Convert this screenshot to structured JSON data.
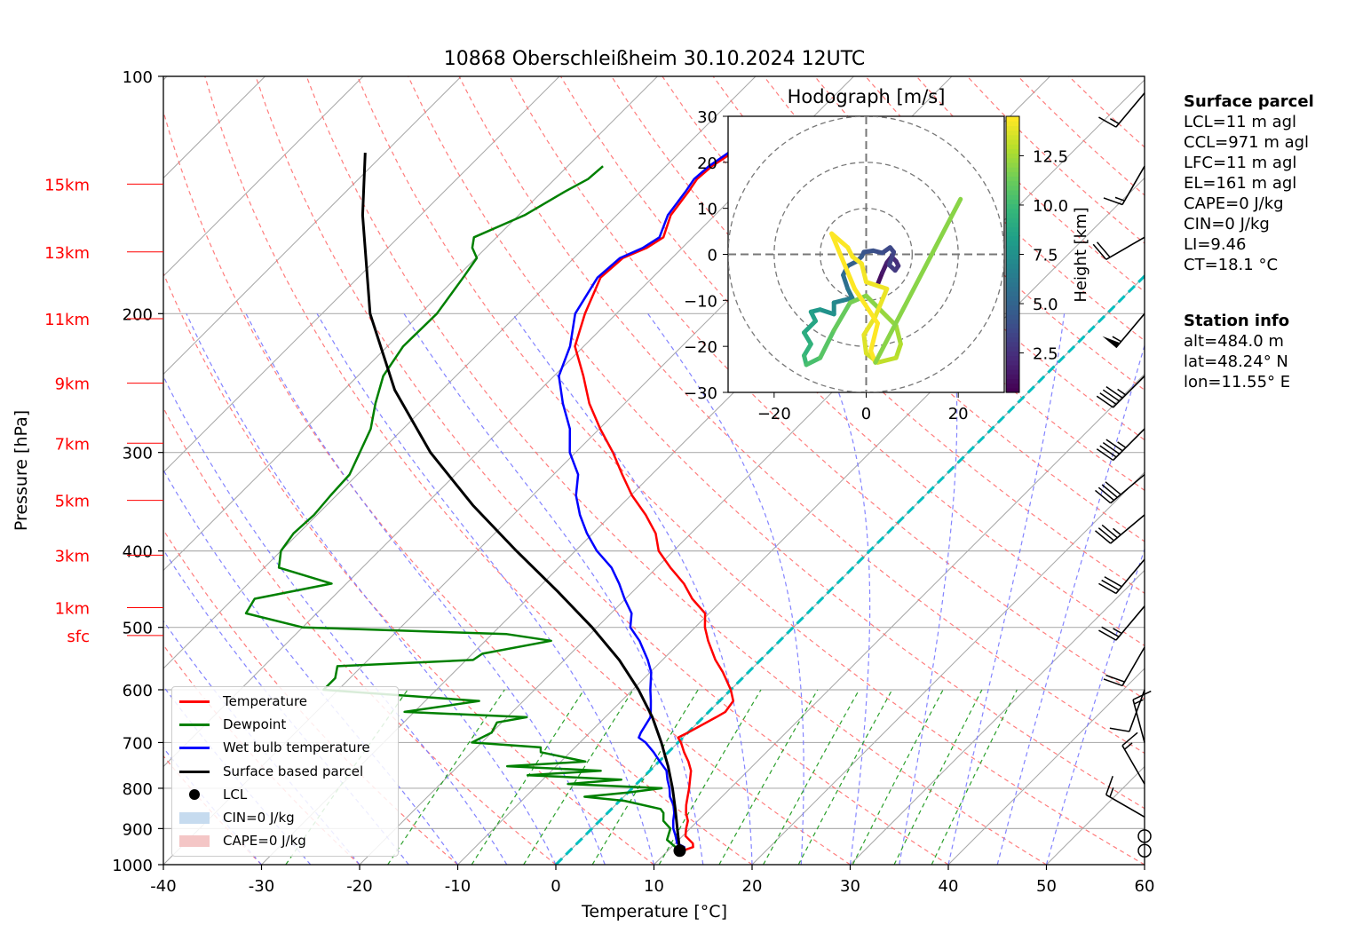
{
  "title": "10868 Oberschleißheim 30.10.2024 12UTC",
  "axes": {
    "xlabel": "Temperature [°C]",
    "ylabel": "Pressure [hPa]",
    "xlim": [
      -40,
      60
    ],
    "x_ticks": [
      -40,
      -30,
      -20,
      -10,
      0,
      10,
      20,
      30,
      40,
      50,
      60
    ],
    "ylim": [
      1000,
      100
    ],
    "y_ticks": [
      100,
      200,
      300,
      400,
      500,
      600,
      700,
      800,
      900,
      1000
    ],
    "y_scale": "log",
    "grid": true
  },
  "height_labels": [
    {
      "label": "15km",
      "p": 137
    },
    {
      "label": "13km",
      "p": 167
    },
    {
      "label": "11km",
      "p": 203
    },
    {
      "label": "9km",
      "p": 245
    },
    {
      "label": "7km",
      "p": 292
    },
    {
      "label": "5km",
      "p": 345
    },
    {
      "label": "3km",
      "p": 405
    },
    {
      "label": "1km",
      "p": 472
    },
    {
      "label": "sfc",
      "p": 512
    }
  ],
  "colors": {
    "temperature": "#ff0000",
    "dewpoint": "#008000",
    "wetbulb": "#0000ff",
    "parcel": "#000000",
    "isotherm_zero": "#00bfbf",
    "dry_adiabat": "#ff6666",
    "moist_adiabat": "#7777ff",
    "mixing_ratio": "#2ca02c",
    "cin": "#c6dbef",
    "cape": "#f4c6c6"
  },
  "legend": {
    "temperature": "Temperature",
    "dewpoint": "Dewpoint",
    "wetbulb": "Wet bulb temperature",
    "parcel": "Surface based parcel",
    "lcl": "LCL",
    "cin": "CIN=0 J/kg",
    "cape": "CAPE=0 J/kg"
  },
  "chart_data": {
    "type": "line",
    "title": "10868 Oberschleißheim 30.10.2024 12UTC",
    "xlabel": "Temperature [°C]",
    "ylabel": "Pressure [hPa]",
    "series": [
      {
        "name": "Temperature",
        "points": [
          [
            11.5,
            960
          ],
          [
            12.2,
            950
          ],
          [
            11.8,
            940
          ],
          [
            10.3,
            920
          ],
          [
            9.6,
            900
          ],
          [
            9.0,
            880
          ],
          [
            8.0,
            860
          ],
          [
            7.2,
            840
          ],
          [
            6.5,
            820
          ],
          [
            5.8,
            800
          ],
          [
            5.0,
            780
          ],
          [
            4.2,
            760
          ],
          [
            3.0,
            740
          ],
          [
            1.6,
            720
          ],
          [
            0.3,
            700
          ],
          [
            -0.5,
            690
          ],
          [
            0.0,
            680
          ],
          [
            1.3,
            650
          ],
          [
            1.7,
            640
          ],
          [
            1.4,
            620
          ],
          [
            0.0,
            600
          ],
          [
            -2.6,
            570
          ],
          [
            -4.6,
            550
          ],
          [
            -7.3,
            520
          ],
          [
            -9.0,
            500
          ],
          [
            -10.4,
            480
          ],
          [
            -13.2,
            460
          ],
          [
            -15.6,
            440
          ],
          [
            -18.6,
            420
          ],
          [
            -21.5,
            400
          ],
          [
            -23.6,
            380
          ],
          [
            -26.5,
            360
          ],
          [
            -29.9,
            340
          ],
          [
            -33.0,
            320
          ],
          [
            -36.2,
            300
          ],
          [
            -39.9,
            280
          ],
          [
            -43.6,
            260
          ],
          [
            -47.0,
            240
          ],
          [
            -50.9,
            220
          ],
          [
            -53.2,
            200
          ],
          [
            -55.3,
            180
          ],
          [
            -55.0,
            170
          ],
          [
            -53.6,
            165
          ],
          [
            -53.0,
            160
          ],
          [
            -54.5,
            150
          ],
          [
            -55.1,
            140
          ],
          [
            -55.5,
            135
          ],
          [
            -55.3,
            130
          ],
          [
            -54.6,
            125
          ]
        ]
      },
      {
        "name": "Dewpoint",
        "points": [
          [
            11.0,
            960
          ],
          [
            10.4,
            950
          ],
          [
            8.8,
            930
          ],
          [
            8.0,
            900
          ],
          [
            6.5,
            880
          ],
          [
            5.7,
            860
          ],
          [
            5.0,
            850
          ],
          [
            0.5,
            830
          ],
          [
            -4.0,
            820
          ],
          [
            0.0,
            810
          ],
          [
            3.0,
            800
          ],
          [
            -7.0,
            790
          ],
          [
            -2.0,
            780
          ],
          [
            -12.0,
            770
          ],
          [
            -5.0,
            760
          ],
          [
            -15.0,
            750
          ],
          [
            -7.5,
            740
          ],
          [
            -13.0,
            720
          ],
          [
            -13.5,
            710
          ],
          [
            -21.0,
            700
          ],
          [
            -20.0,
            680
          ],
          [
            -20.5,
            660
          ],
          [
            -18.0,
            650
          ],
          [
            -31.0,
            640
          ],
          [
            -24.5,
            620
          ],
          [
            -41.5,
            600
          ],
          [
            -41.5,
            580
          ],
          [
            -42.5,
            560
          ],
          [
            -29.3,
            550
          ],
          [
            -29.0,
            540
          ],
          [
            -23.3,
            520
          ],
          [
            -28.5,
            510
          ],
          [
            -50.0,
            500
          ],
          [
            -57.2,
            480
          ],
          [
            -57.8,
            460
          ],
          [
            -51.5,
            440
          ],
          [
            -58.5,
            420
          ],
          [
            -60.0,
            400
          ],
          [
            -60.5,
            380
          ],
          [
            -60.3,
            360
          ],
          [
            -60.6,
            340
          ],
          [
            -60.8,
            320
          ],
          [
            -62.0,
            300
          ],
          [
            -63.3,
            280
          ],
          [
            -65.4,
            260
          ],
          [
            -67.4,
            240
          ],
          [
            -68.4,
            220
          ],
          [
            -68.3,
            200
          ],
          [
            -69.3,
            180
          ],
          [
            -69.9,
            170
          ],
          [
            -71.4,
            165
          ],
          [
            -72.3,
            160
          ],
          [
            -69.4,
            150
          ],
          [
            -67.7,
            140
          ],
          [
            -66.6,
            135
          ],
          [
            -66.4,
            130
          ]
        ]
      },
      {
        "name": "Wet bulb temperature",
        "points": [
          [
            11.2,
            960
          ],
          [
            11.3,
            950
          ],
          [
            10.2,
            940
          ],
          [
            9.3,
            920
          ],
          [
            8.3,
            900
          ],
          [
            7.5,
            880
          ],
          [
            6.8,
            860
          ],
          [
            5.9,
            840
          ],
          [
            4.7,
            820
          ],
          [
            3.8,
            800
          ],
          [
            2.7,
            780
          ],
          [
            1.7,
            760
          ],
          [
            0.1,
            740
          ],
          [
            -1.5,
            720
          ],
          [
            -3.3,
            700
          ],
          [
            -4.5,
            690
          ],
          [
            -4.8,
            680
          ],
          [
            -5.4,
            650
          ],
          [
            -5.9,
            640
          ],
          [
            -7.0,
            620
          ],
          [
            -8.2,
            600
          ],
          [
            -9.9,
            570
          ],
          [
            -11.5,
            550
          ],
          [
            -14.3,
            520
          ],
          [
            -16.6,
            500
          ],
          [
            -17.9,
            480
          ],
          [
            -20.1,
            460
          ],
          [
            -22.2,
            440
          ],
          [
            -24.6,
            420
          ],
          [
            -27.8,
            400
          ],
          [
            -30.6,
            380
          ],
          [
            -33.2,
            360
          ],
          [
            -35.6,
            340
          ],
          [
            -37.5,
            320
          ],
          [
            -40.6,
            300
          ],
          [
            -43.0,
            280
          ],
          [
            -46.3,
            260
          ],
          [
            -49.5,
            240
          ],
          [
            -51.4,
            220
          ],
          [
            -54.2,
            200
          ],
          [
            -55.6,
            180
          ],
          [
            -55.3,
            170
          ],
          [
            -54.0,
            165
          ],
          [
            -53.4,
            160
          ],
          [
            -54.8,
            150
          ],
          [
            -55.4,
            140
          ],
          [
            -55.8,
            135
          ],
          [
            -55.6,
            130
          ],
          [
            -55.0,
            125
          ]
        ]
      },
      {
        "name": "Surface based parcel",
        "points": [
          [
            11.2,
            960
          ],
          [
            8.7,
            900
          ],
          [
            6.5,
            850
          ],
          [
            4.1,
            800
          ],
          [
            1.4,
            750
          ],
          [
            -1.7,
            700
          ],
          [
            -5.2,
            650
          ],
          [
            -9.4,
            600
          ],
          [
            -14.4,
            550
          ],
          [
            -20.5,
            500
          ],
          [
            -27.7,
            450
          ],
          [
            -36.0,
            400
          ],
          [
            -45.1,
            350
          ],
          [
            -54.8,
            300
          ],
          [
            -64.8,
            250
          ],
          [
            -75.1,
            200
          ],
          [
            -85.9,
            150
          ],
          [
            -92.0,
            125
          ]
        ]
      }
    ],
    "lcl": {
      "t": 11.2,
      "p": 960
    },
    "isotherm_0": true
  },
  "hodograph": {
    "title": "Hodograph [m/s]",
    "xlim": [
      -30,
      30
    ],
    "ylim": [
      -30,
      30
    ],
    "ticks": [
      -20,
      0,
      20
    ],
    "ytick_labels": [
      30,
      20,
      10,
      0,
      -10,
      -20,
      -30
    ],
    "rings": [
      10,
      20,
      30
    ],
    "colorbar_label": "Height [km]",
    "colorbar_ticks": [
      2.5,
      5.0,
      7.5,
      10.0,
      12.5
    ],
    "height_range_km": [
      0.5,
      14.5
    ],
    "trace": [
      {
        "u": 2.5,
        "v": -6.5,
        "h": 0.5
      },
      {
        "u": 3.5,
        "v": -4.0,
        "h": 1.0
      },
      {
        "u": 4.5,
        "v": -1.8,
        "h": 1.5
      },
      {
        "u": 5.5,
        "v": -0.5,
        "h": 1.8
      },
      {
        "u": 6.5,
        "v": -1.5,
        "h": 2.0
      },
      {
        "u": 7.0,
        "v": -2.5,
        "h": 2.3
      },
      {
        "u": 6.3,
        "v": -3.5,
        "h": 2.6
      },
      {
        "u": 5.0,
        "v": -2.3,
        "h": 2.9
      },
      {
        "u": 6.0,
        "v": 0.5,
        "h": 3.2
      },
      {
        "u": 5.2,
        "v": 1.5,
        "h": 3.4
      },
      {
        "u": 3.5,
        "v": 0.3,
        "h": 3.6
      },
      {
        "u": 1.5,
        "v": 0.8,
        "h": 3.8
      },
      {
        "u": -0.5,
        "v": 0.5,
        "h": 4.0
      },
      {
        "u": -1.0,
        "v": -0.5,
        "h": 4.2
      },
      {
        "u": -2.0,
        "v": -1.5,
        "h": 4.5
      },
      {
        "u": -4.0,
        "v": -2.5,
        "h": 4.8
      },
      {
        "u": -5.0,
        "v": -4.5,
        "h": 5.2
      },
      {
        "u": -4.0,
        "v": -7.5,
        "h": 5.6
      },
      {
        "u": -3.0,
        "v": -9.5,
        "h": 6.0
      },
      {
        "u": -5.0,
        "v": -10.0,
        "h": 6.4
      },
      {
        "u": -7.0,
        "v": -10.5,
        "h": 6.8
      },
      {
        "u": -7.0,
        "v": -13.0,
        "h": 7.2
      },
      {
        "u": -10.0,
        "v": -12.0,
        "h": 7.6
      },
      {
        "u": -12.0,
        "v": -12.5,
        "h": 8.0
      },
      {
        "u": -11.0,
        "v": -14.5,
        "h": 8.4
      },
      {
        "u": -13.5,
        "v": -17.0,
        "h": 8.8
      },
      {
        "u": -12.0,
        "v": -19.5,
        "h": 9.2
      },
      {
        "u": -13.5,
        "v": -22.0,
        "h": 9.6
      },
      {
        "u": -13.0,
        "v": -24.0,
        "h": 10.0
      },
      {
        "u": -10.0,
        "v": -22.5,
        "h": 10.4
      },
      {
        "u": -7.0,
        "v": -16.5,
        "h": 10.8
      },
      {
        "u": -3.5,
        "v": -10.5,
        "h": 11.2
      },
      {
        "u": 0.0,
        "v": -9.0,
        "h": 11.6
      },
      {
        "u": 3.0,
        "v": -12.0,
        "h": 12.0
      },
      {
        "u": 6.5,
        "v": -15.5,
        "h": 12.3
      },
      {
        "u": 7.5,
        "v": -19.5,
        "h": 12.6
      },
      {
        "u": 6.5,
        "v": -22.5,
        "h": 12.9
      },
      {
        "u": 2.5,
        "v": -23.5,
        "h": 13.2
      },
      {
        "u": 0.0,
        "v": -21.5,
        "h": 13.5
      },
      {
        "u": -0.5,
        "v": -17.5,
        "h": 13.8
      },
      {
        "u": 2.0,
        "v": -13.5,
        "h": 14.0
      },
      {
        "u": 4.5,
        "v": -7.5,
        "h": 14.1
      },
      {
        "u": 0.0,
        "v": -6.0,
        "h": 14.2
      },
      {
        "u": -1.0,
        "v": -2.0,
        "h": 14.3
      },
      {
        "u": -3.0,
        "v": -0.5,
        "h": 14.35
      },
      {
        "u": -4.0,
        "v": 1.5,
        "h": 14.4
      },
      {
        "u": -7.5,
        "v": 4.5,
        "h": 14.45
      },
      {
        "u": -2.5,
        "v": -7.5,
        "h": 14.5
      },
      {
        "u": 2.5,
        "v": -15.0,
        "h": 14.5
      },
      {
        "u": 1.0,
        "v": -21.0,
        "h": 14.5
      },
      {
        "u": 2.0,
        "v": -23.5,
        "h": 14.5
      },
      {
        "u": 20.5,
        "v": 12.0,
        "h": 12.0
      }
    ]
  },
  "wind_barbs": [
    {
      "p": 960,
      "dir": 0,
      "spd": 0
    },
    {
      "p": 920,
      "dir": 0,
      "spd": 0
    },
    {
      "p": 870,
      "dir": 300,
      "spd": 15
    },
    {
      "p": 790,
      "dir": 330,
      "spd": 15
    },
    {
      "p": 700,
      "dir": 345,
      "spd": 15
    },
    {
      "p": 600,
      "dir": 200,
      "spd": 10
    },
    {
      "p": 530,
      "dir": 210,
      "spd": 20
    },
    {
      "p": 470,
      "dir": 220,
      "spd": 25
    },
    {
      "p": 410,
      "dir": 220,
      "spd": 30
    },
    {
      "p": 360,
      "dir": 230,
      "spd": 35
    },
    {
      "p": 320,
      "dir": 230,
      "spd": 40
    },
    {
      "p": 280,
      "dir": 225,
      "spd": 45
    },
    {
      "p": 240,
      "dir": 225,
      "spd": 45
    },
    {
      "p": 200,
      "dir": 220,
      "spd": 55
    },
    {
      "p": 160,
      "dir": 240,
      "spd": 20
    },
    {
      "p": 130,
      "dir": 210,
      "spd": 15
    },
    {
      "p": 105,
      "dir": 220,
      "spd": 15
    }
  ],
  "surface_parcel": {
    "heading": "Surface parcel",
    "lines": [
      "LCL=11 m agl",
      "CCL=971 m agl",
      "LFC=11 m agl",
      "EL=161 m agl",
      "CAPE=0 J/kg",
      "CIN=0 J/kg",
      "LI=9.46",
      "CT=18.1 °C"
    ]
  },
  "station_info": {
    "heading": "Station info",
    "lines": [
      "alt=484.0 m",
      "lat=48.24° N",
      "lon=11.55° E"
    ]
  }
}
